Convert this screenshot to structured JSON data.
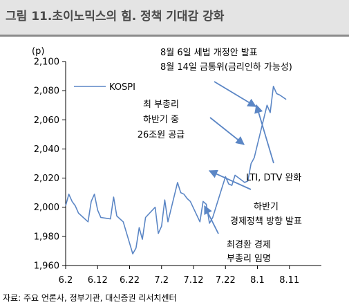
{
  "header": {
    "title": "그림 11.초이노믹스의 힘. 정책 기대감 강화"
  },
  "footer": {
    "source": "자료: 주요 언론사, 정부기관, 대신증권 리서치센터"
  },
  "colors": {
    "series": "#5b86c5",
    "title_band": "#e4e4e4",
    "title_text": "#4a4a4a"
  },
  "chart_data": {
    "type": "line",
    "unit_label": "(p)",
    "ylim": [
      1960,
      2100
    ],
    "yticks": [
      1960,
      1980,
      2000,
      2020,
      2040,
      2060,
      2080,
      2100
    ],
    "ytick_labels": [
      "1,960",
      "1,980",
      "2,000",
      "2,020",
      "2,040",
      "2,060",
      "2,080",
      "2,100"
    ],
    "xtick_labels": [
      "6.2",
      "6.12",
      "6.22",
      "7.2",
      "7.12",
      "7.22",
      "8.1",
      "8.11"
    ],
    "xlim": [
      0,
      80
    ],
    "grid": false,
    "series": [
      {
        "name": "KOSPI",
        "x": [
          0,
          1,
          2,
          3,
          4,
          7,
          8,
          9,
          10,
          11,
          14,
          15,
          16,
          17,
          18,
          21,
          22,
          23,
          24,
          25,
          28,
          29,
          30,
          31,
          32,
          35,
          36,
          37,
          38,
          39,
          42,
          43,
          44,
          45,
          46,
          49,
          50,
          51,
          52,
          53,
          56,
          57,
          58,
          59,
          60,
          63,
          64,
          65,
          66,
          67,
          69
        ],
        "values": [
          2001,
          2009,
          2004,
          2001,
          1996,
          1990,
          2004,
          2009,
          1998,
          1993,
          1992,
          2007,
          1994,
          1992,
          1990,
          1968,
          1972,
          1986,
          1978,
          1993,
          2000,
          1982,
          1987,
          2005,
          1990,
          2017,
          2010,
          2009,
          2006,
          2004,
          1990,
          2004,
          2002,
          1989,
          1993,
          2014,
          2021,
          2016,
          2015,
          2022,
          2017,
          2018,
          2030,
          2034,
          2043,
          2070,
          2065,
          2083,
          2078,
          2077,
          2074
        ]
      }
    ],
    "annotations": [
      {
        "lines": [
          "8월 6일 세법 개정안 발표",
          "8월 14일 금통위(금리인하 가능성)"
        ]
      },
      {
        "lines": [
          "최 부총리",
          "하반기 중",
          "26조원 공급"
        ]
      },
      {
        "lines": [
          "LTI, DTV 완화"
        ]
      },
      {
        "lines": [
          "하반기",
          "경제정책 방향 발표"
        ]
      },
      {
        "lines": [
          "최경환 경제",
          "부총리 임명"
        ]
      }
    ]
  }
}
